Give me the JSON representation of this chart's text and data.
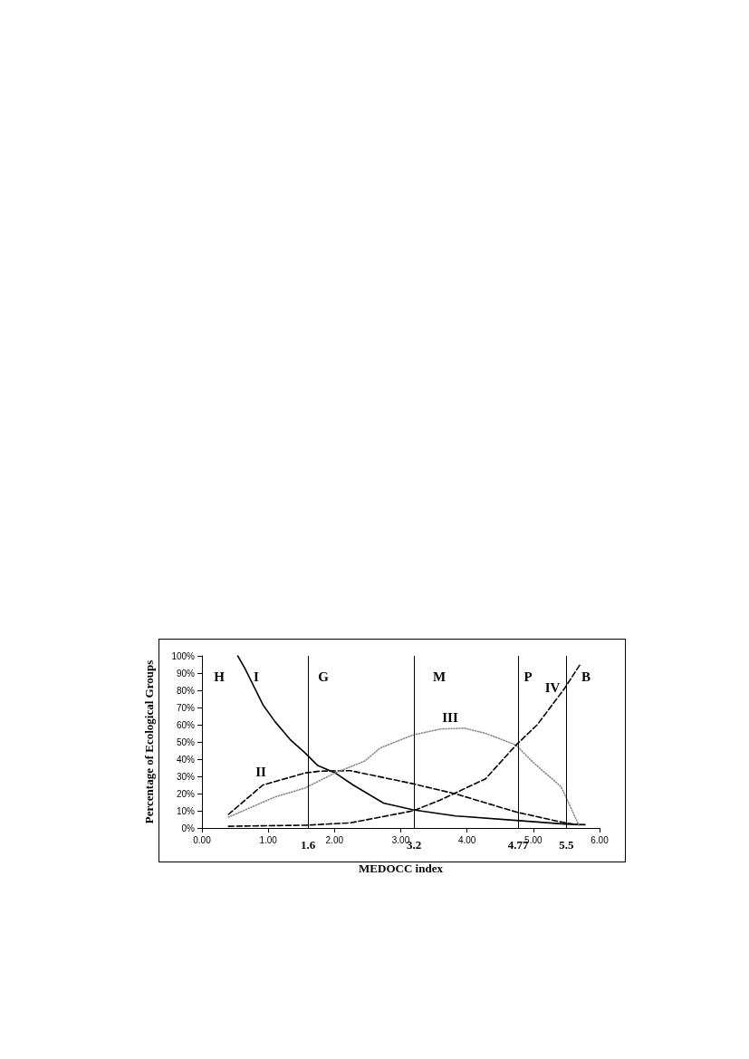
{
  "chart_data": {
    "type": "line",
    "xlabel": "MEDOCC index",
    "ylabel": "Percentage of Ecological Groups",
    "xlim": [
      0,
      6
    ],
    "xticks": [
      {
        "value": 0,
        "label": "0.00"
      },
      {
        "value": 1,
        "label": "1.00"
      },
      {
        "value": 2,
        "label": "2.00"
      },
      {
        "value": 3,
        "label": "3.00"
      },
      {
        "value": 4,
        "label": "4.00"
      },
      {
        "value": 5,
        "label": "5.00"
      },
      {
        "value": 6,
        "label": "6.00"
      }
    ],
    "ylim": [
      0,
      100
    ],
    "yticks": [
      {
        "value": 0,
        "label": "0%"
      },
      {
        "value": 10,
        "label": "10%"
      },
      {
        "value": 20,
        "label": "20%"
      },
      {
        "value": 30,
        "label": "30%"
      },
      {
        "value": 40,
        "label": "40%"
      },
      {
        "value": 50,
        "label": "50%"
      },
      {
        "value": 60,
        "label": "60%"
      },
      {
        "value": 70,
        "label": "70%"
      },
      {
        "value": 80,
        "label": "80%"
      },
      {
        "value": 90,
        "label": "90%"
      },
      {
        "value": 100,
        "label": "100%"
      }
    ],
    "series": [
      {
        "color": "#000000",
        "line_style": "solid",
        "x": [
          0.54,
          0.65,
          0.92,
          1.1,
          1.33,
          1.56,
          1.74,
          2.01,
          2.28,
          2.74,
          3.19,
          3.83,
          4.74,
          5.47,
          5.78
        ],
        "values": [
          100,
          92.6,
          71.6,
          61.9,
          51.4,
          43.5,
          36.5,
          32,
          25,
          14.5,
          10.5,
          7,
          4.4,
          2.3,
          1.9
        ]
      },
      {
        "color": "#000000",
        "line_style": "dashed",
        "x": [
          0.4,
          0.92,
          1.56,
          1.78,
          2.24,
          3.15,
          3.83,
          4.74,
          5.38,
          5.65
        ],
        "values": [
          7.9,
          25,
          32,
          33,
          33.3,
          26,
          19.8,
          9.3,
          3.8,
          1.9
        ]
      },
      {
        "color": "#888888",
        "line_style": "dotted",
        "x": [
          0.4,
          1.1,
          1.56,
          2.01,
          2.46,
          2.69,
          3.18,
          3.6,
          3.96,
          4.28,
          4.74,
          5.0,
          5.42,
          5.69
        ],
        "values": [
          6.3,
          18,
          23.3,
          32,
          39,
          46.5,
          54,
          57.5,
          58,
          55,
          48.2,
          38,
          24,
          1.5
        ]
      },
      {
        "color": "#000000",
        "line_style": "dashed",
        "x": [
          0.4,
          1.56,
          2.24,
          3.19,
          3.6,
          4.28,
          4.74,
          5.06,
          5.47,
          5.72
        ],
        "values": [
          1,
          1.6,
          3,
          10,
          16.3,
          28.6,
          48.2,
          60,
          81,
          95.8
        ]
      }
    ],
    "ref_lines": [
      {
        "axis": "x",
        "value": 1.6,
        "label": "1.6"
      },
      {
        "axis": "x",
        "value": 3.2,
        "label": "3.2"
      },
      {
        "axis": "x",
        "value": 4.77,
        "label": "4.77"
      },
      {
        "axis": "x",
        "value": 5.5,
        "label": "5.5"
      }
    ],
    "annotations": [
      "H",
      "I",
      "G",
      "M",
      "P",
      "IV",
      "B",
      "III",
      "II"
    ],
    "marker": "none",
    "grid": false
  }
}
